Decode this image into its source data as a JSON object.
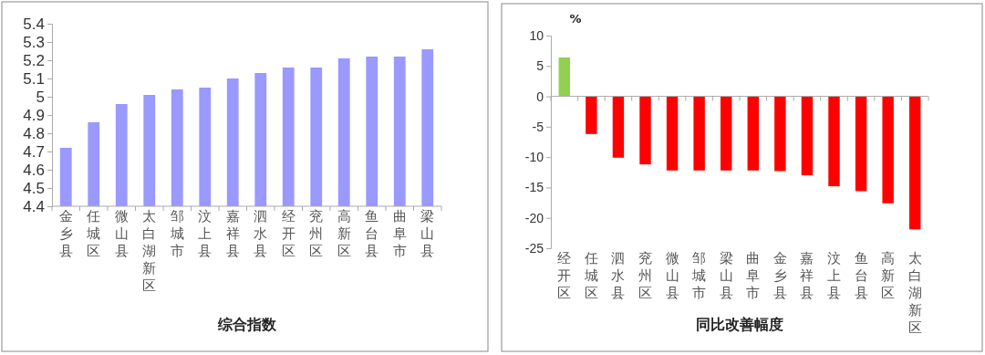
{
  "chart_data": [
    {
      "type": "bar",
      "xlabel": "综合指数",
      "categories": [
        "金乡县",
        "任城区",
        "微山县",
        "太白湖新区",
        "邹城市",
        "汶上县",
        "嘉祥县",
        "泗水县",
        "经开区",
        "兖州区",
        "高新区",
        "鱼台县",
        "曲阜市",
        "梁山县"
      ],
      "values": [
        4.72,
        4.86,
        4.96,
        5.01,
        5.04,
        5.05,
        5.1,
        5.13,
        5.16,
        5.16,
        5.21,
        5.22,
        5.22,
        5.26
      ],
      "color": "#9999ff",
      "ylim": [
        4.4,
        5.4
      ],
      "yticks": [
        4.4,
        4.5,
        4.6,
        4.7,
        4.8,
        4.9,
        5,
        5.1,
        5.2,
        5.3,
        5.4
      ]
    },
    {
      "type": "bar",
      "xlabel": "同比改善幅度",
      "ylabel": "%",
      "categories": [
        "经开区",
        "任城区",
        "泗水县",
        "兖州区",
        "微山县",
        "邹城市",
        "梁山县",
        "曲阜市",
        "金乡县",
        "嘉祥县",
        "汶上县",
        "鱼台县",
        "高新区",
        "太白湖新区"
      ],
      "values": [
        6.4,
        -6.2,
        -10.1,
        -11.2,
        -12.2,
        -12.2,
        -12.2,
        -12.2,
        -12.3,
        -13.0,
        -14.8,
        -15.6,
        -17.6,
        -21.9
      ],
      "colors": [
        "#92d050",
        "#ff0000",
        "#ff0000",
        "#ff0000",
        "#ff0000",
        "#ff0000",
        "#ff0000",
        "#ff0000",
        "#ff0000",
        "#ff0000",
        "#ff0000",
        "#ff0000",
        "#ff0000",
        "#ff0000"
      ],
      "ylim": [
        -25,
        10
      ],
      "yticks": [
        -25,
        -20,
        -15,
        -10,
        -5,
        0,
        5,
        10
      ]
    }
  ]
}
